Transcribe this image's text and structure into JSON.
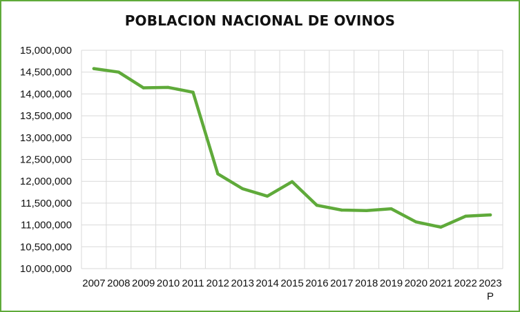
{
  "chart_data": {
    "type": "line",
    "title": "POBLACION NACIONAL DE OVINOS",
    "xlabel": "",
    "ylabel": "",
    "categories": [
      "2007",
      "2008",
      "2009",
      "2010",
      "2011",
      "2012",
      "2013",
      "2014",
      "2015",
      "2016",
      "2017",
      "2018",
      "2019",
      "2020",
      "2021",
      "2022",
      "2023 P"
    ],
    "category_lines": [
      [
        "2007"
      ],
      [
        "2008"
      ],
      [
        "2009"
      ],
      [
        "2010"
      ],
      [
        "2011"
      ],
      [
        "2012"
      ],
      [
        "2013"
      ],
      [
        "2014"
      ],
      [
        "2015"
      ],
      [
        "2016"
      ],
      [
        "2017"
      ],
      [
        "2018"
      ],
      [
        "2019"
      ],
      [
        "2020"
      ],
      [
        "2021"
      ],
      [
        "2022"
      ],
      [
        "2023",
        "P"
      ]
    ],
    "series": [
      {
        "values": [
          14580000,
          14500000,
          14140000,
          14150000,
          14040000,
          12170000,
          11830000,
          11660000,
          11990000,
          11450000,
          11340000,
          11330000,
          11370000,
          11070000,
          10950000,
          11200000,
          11230000
        ]
      }
    ],
    "ylim": [
      10000000,
      15000000
    ],
    "yticks": [
      10000000,
      10500000,
      11000000,
      11500000,
      12000000,
      12500000,
      13000000,
      13500000,
      14000000,
      14500000,
      15000000
    ],
    "ytick_labels": [
      "10,000,000",
      "10,500,000",
      "11,000,000",
      "11,500,000",
      "12,000,000",
      "12,500,000",
      "13,000,000",
      "13,500,000",
      "14,000,000",
      "14,500,000",
      "15,000,000"
    ],
    "grid": true,
    "line_color": "#5faa3a",
    "grid_color": "#d9d9d9",
    "frame_color": "#5faa3a"
  }
}
